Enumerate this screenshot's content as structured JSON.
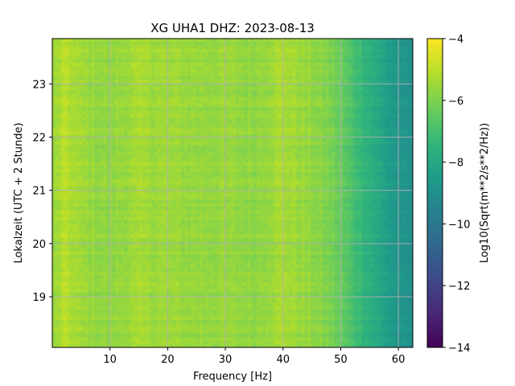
{
  "chart_data": {
    "type": "heatmap",
    "title": "XG UHA1  DHZ: 2023-08-13",
    "xlabel": "Frequency [Hz]",
    "ylabel": "Lokalzeit (UTC + 2 Stunde)",
    "xlim": [
      0,
      62.5
    ],
    "ylim": [
      23.85,
      18.05
    ],
    "xticks": [
      10,
      20,
      30,
      40,
      50,
      60
    ],
    "yticks": [
      19,
      20,
      21,
      22,
      23
    ],
    "grid": true,
    "colorbar": {
      "label": "Log10(Sqrt(m**2/s**2/Hz))",
      "range": [
        -14,
        -4
      ],
      "ticks": [
        -4,
        -6,
        -8,
        -10,
        -12,
        -14
      ],
      "colormap": "viridis"
    },
    "colormap_stops": [
      "#440154",
      "#482878",
      "#3e4a89",
      "#31688e",
      "#26828e",
      "#1f9e89",
      "#35b779",
      "#6ece58",
      "#b5de2b",
      "#fde725"
    ],
    "spectrum_profile": {
      "frequency_hz": [
        0,
        2,
        5,
        10,
        15,
        20,
        25,
        30,
        35,
        40,
        45,
        48,
        50,
        52,
        54,
        56,
        58,
        60,
        62.5
      ],
      "log10_amplitude": [
        -5.7,
        -5.1,
        -5.5,
        -5.7,
        -5.4,
        -5.5,
        -5.6,
        -5.6,
        -5.7,
        -5.3,
        -5.7,
        -6.0,
        -6.4,
        -6.9,
        -7.4,
        -7.9,
        -8.4,
        -8.8,
        -9.0
      ]
    },
    "bright_bands_hour": [
      19.73,
      19.85,
      21.12,
      21.25
    ],
    "bright_band_boost": 0.55
  }
}
